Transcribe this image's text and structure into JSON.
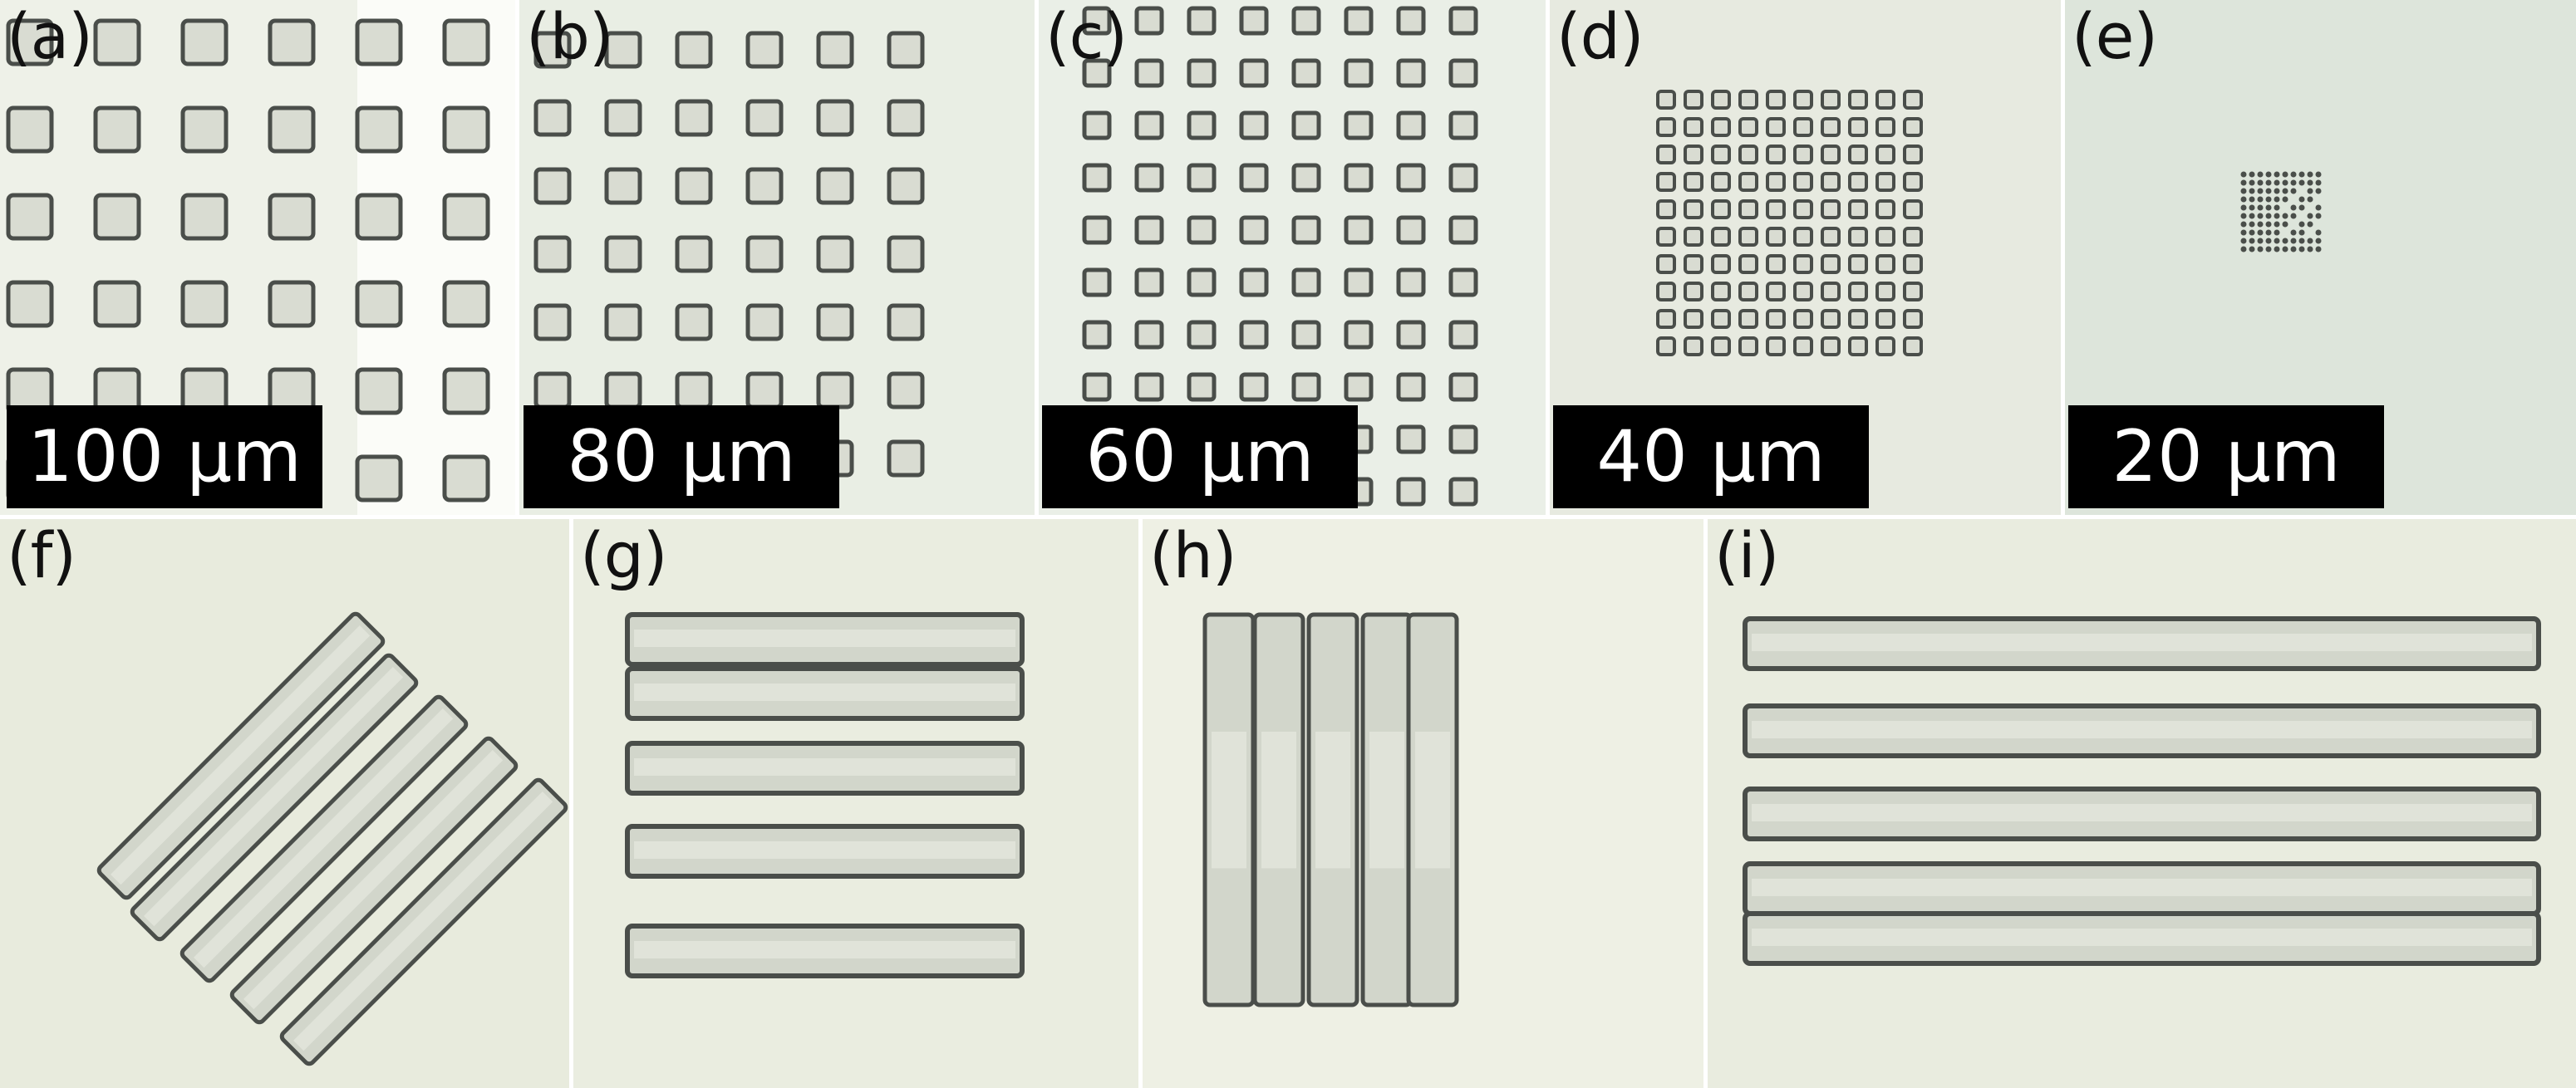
{
  "panels": [
    {
      "id": "a",
      "label": "(a)",
      "scale": "100 µm",
      "bg": "#eef1e8"
    },
    {
      "id": "b",
      "label": "(b)",
      "scale": "80 µm",
      "bg": "#e9eee4"
    },
    {
      "id": "c",
      "label": "(c)",
      "scale": "60 µm",
      "bg": "#eaefe7"
    },
    {
      "id": "d",
      "label": "(d)",
      "scale": "40 µm",
      "bg": "#e7eae0"
    },
    {
      "id": "e",
      "label": "(e)",
      "scale": "20 µm",
      "bg": "#dde5db"
    },
    {
      "id": "f",
      "label": "(f)",
      "bg": "#e8ebdd"
    },
    {
      "id": "g",
      "label": "(g)",
      "bg": "#eaede0"
    },
    {
      "id": "h",
      "label": "(h)",
      "bg": "#eef0e4"
    },
    {
      "id": "i",
      "label": "(i)",
      "bg": "#e9ecdf"
    }
  ],
  "colors": {
    "feature_edge": "#4a4e4a",
    "feature_fill": "#d9dcd2",
    "label_text": "#111111",
    "scale_bg": "#000000",
    "scale_text": "#ffffff"
  }
}
